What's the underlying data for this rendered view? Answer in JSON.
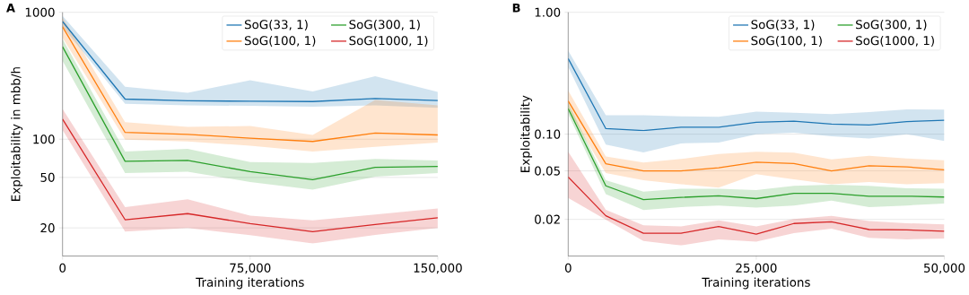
{
  "chart_data": [
    {
      "type": "line",
      "title": "A",
      "xlabel": "Training iterations",
      "ylabel": "Exploitability in mbb/h",
      "log": true,
      "grid": "y",
      "legend": "top right",
      "xlim": [
        0,
        150000
      ],
      "xticks": [
        0,
        {
          "value": 75000,
          "label": "75,000"
        },
        {
          "value": 150000,
          "label": "150,000"
        }
      ],
      "ylim": [
        12,
        1000
      ],
      "yticks": [
        20,
        50,
        100,
        1000
      ],
      "x": [
        0,
        25000,
        50000,
        75000,
        100000,
        125000,
        150000
      ],
      "series": [
        {
          "name": "SoG(33, 1)",
          "color": "#1f77b4",
          "values": [
            846,
            207,
            201,
            199,
            198,
            209,
            202
          ],
          "lower": [
            770,
            190,
            185,
            183,
            180,
            185,
            177
          ],
          "upper": [
            935,
            259,
            232,
            292,
            238,
            314,
            236
          ]
        },
        {
          "name": "SoG(100, 1)",
          "color": "#ff7f0e",
          "values": [
            770,
            113,
            109,
            102,
            96,
            112,
            108
          ],
          "lower": [
            632,
            99,
            96,
            89,
            80,
            87,
            94
          ],
          "upper": [
            909,
            136,
            125,
            127,
            108,
            204,
            185
          ]
        },
        {
          "name": "SoG(300, 1)",
          "color": "#2ca02c",
          "values": [
            535,
            67,
            68,
            55.5,
            48,
            60,
            61
          ],
          "lower": [
            416,
            54,
            55.5,
            46,
            40,
            50.7,
            54
          ],
          "upper": [
            615,
            80,
            84,
            66,
            65,
            70,
            68
          ]
        },
        {
          "name": "SoG(1000, 1)",
          "color": "#d62728",
          "values": [
            144,
            23.2,
            25.9,
            21.6,
            18.7,
            21.3,
            24
          ],
          "lower": [
            118,
            18.7,
            20,
            17.5,
            15.1,
            17.6,
            20
          ],
          "upper": [
            173,
            29.2,
            33.6,
            25,
            22.9,
            25.5,
            28.4
          ]
        }
      ]
    },
    {
      "type": "line",
      "title": "B",
      "xlabel": "Training iterations",
      "ylabel": "Exploitability",
      "log": true,
      "grid": "y",
      "legend": "top right",
      "xlim": [
        0,
        50000
      ],
      "xticks": [
        0,
        {
          "value": 25000,
          "label": "25,000"
        },
        {
          "value": 50000,
          "label": "50,000"
        }
      ],
      "ylim": [
        0.01,
        1
      ],
      "yticks": [
        0.02,
        0.05,
        {
          "value": 0.1,
          "label": "0.10"
        },
        {
          "value": 1,
          "label": "1.00"
        }
      ],
      "x": [
        0,
        5000,
        10000,
        15000,
        20000,
        25000,
        30000,
        35000,
        40000,
        45000,
        50000
      ],
      "series": [
        {
          "name": "SoG(33, 1)",
          "color": "#1f77b4",
          "values": [
            0.417,
            0.111,
            0.107,
            0.114,
            0.114,
            0.125,
            0.128,
            0.121,
            0.119,
            0.127,
            0.13
          ],
          "lower": [
            0.356,
            0.082,
            0.0707,
            0.084,
            0.0855,
            0.1,
            0.103,
            0.096,
            0.092,
            0.1,
            0.088
          ],
          "upper": [
            0.485,
            0.143,
            0.143,
            0.14,
            0.139,
            0.153,
            0.15,
            0.146,
            0.152,
            0.16,
            0.159
          ]
        },
        {
          "name": "SoG(100, 1)",
          "color": "#ff7f0e",
          "values": [
            0.187,
            0.0572,
            0.05,
            0.05,
            0.053,
            0.059,
            0.0575,
            0.05,
            0.0551,
            0.0539,
            0.051
          ],
          "lower": [
            0.158,
            0.048,
            0.0419,
            0.0389,
            0.0365,
            0.047,
            0.0426,
            0.0389,
            0.0405,
            0.0389,
            0.0397
          ],
          "upper": [
            0.228,
            0.0656,
            0.0586,
            0.0626,
            0.0687,
            0.0718,
            0.0706,
            0.062,
            0.0664,
            0.0633,
            0.061
          ]
        },
        {
          "name": "SoG(300, 1)",
          "color": "#2ca02c",
          "values": [
            0.162,
            0.0377,
            0.029,
            0.0303,
            0.0312,
            0.0296,
            0.0327,
            0.0327,
            0.031,
            0.031,
            0.0305
          ],
          "lower": [
            0.146,
            0.0322,
            0.0238,
            0.0252,
            0.026,
            0.025,
            0.026,
            0.0285,
            0.0252,
            0.026,
            0.027
          ],
          "upper": [
            0.18,
            0.0419,
            0.0337,
            0.0357,
            0.0357,
            0.0348,
            0.0377,
            0.0385,
            0.0377,
            0.036,
            0.0357
          ]
        },
        {
          "name": "SoG(1000, 1)",
          "color": "#d62728",
          "values": [
            0.0445,
            0.0214,
            0.0154,
            0.0154,
            0.0175,
            0.0151,
            0.0185,
            0.0191,
            0.0165,
            0.0164,
            0.016
          ],
          "lower": [
            0.03,
            0.0199,
            0.0133,
            0.0122,
            0.0137,
            0.0131,
            0.0154,
            0.0168,
            0.0141,
            0.0137,
            0.0139
          ],
          "upper": [
            0.0718,
            0.0239,
            0.0179,
            0.0175,
            0.0196,
            0.0175,
            0.0201,
            0.0214,
            0.0194,
            0.0186,
            0.0182
          ]
        }
      ]
    }
  ]
}
